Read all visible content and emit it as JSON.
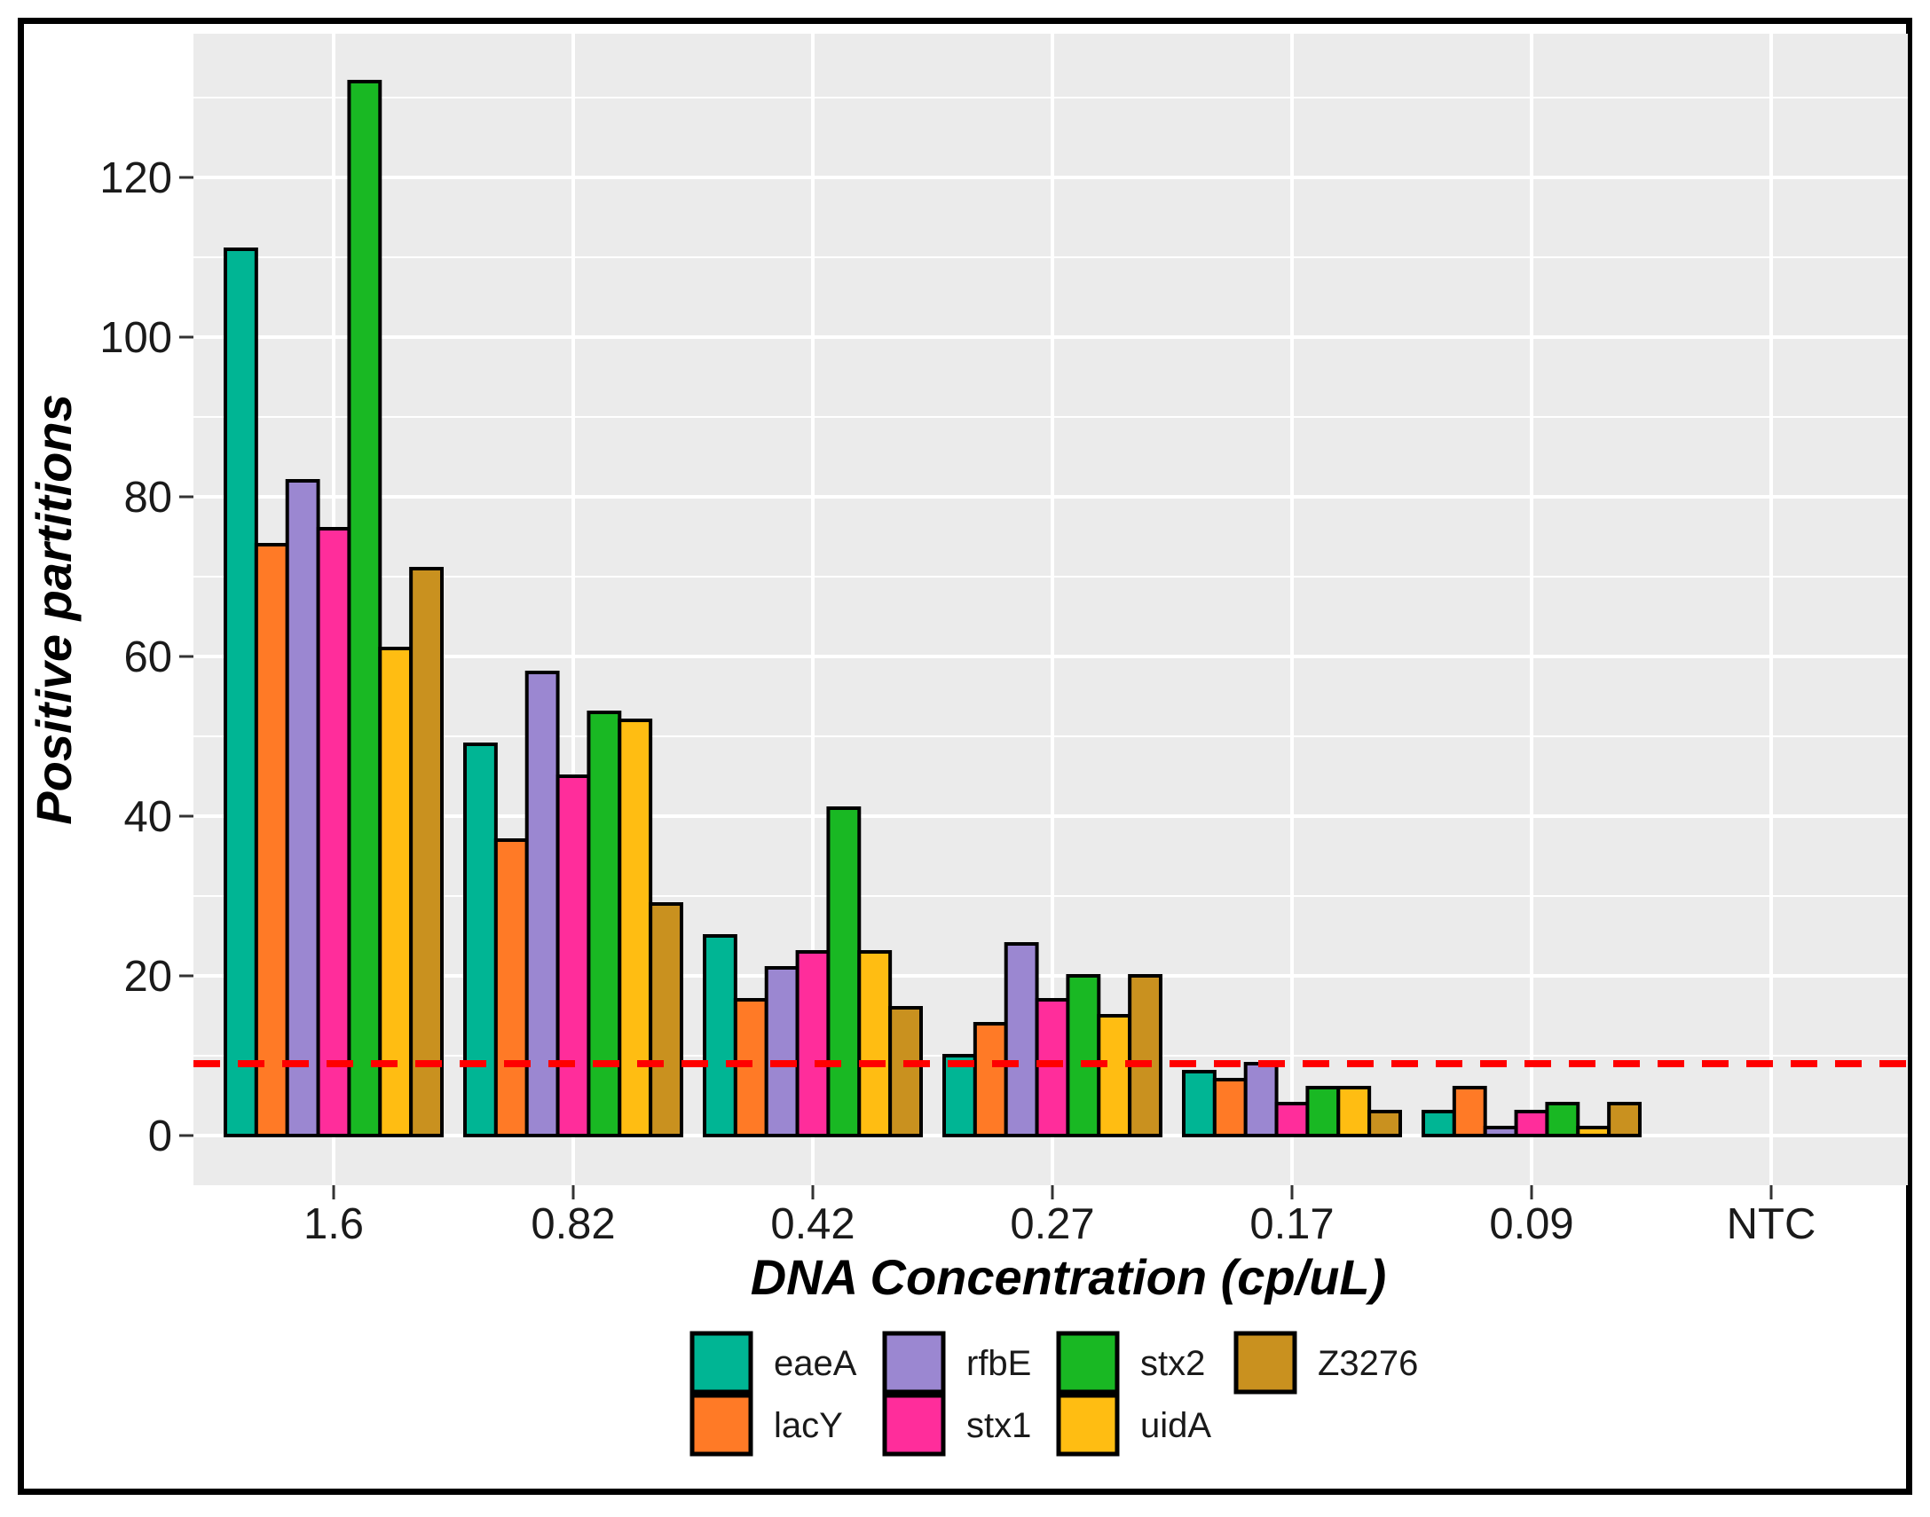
{
  "chart_data": {
    "type": "bar",
    "xlabel": "DNA Concentration (cp/uL)",
    "ylabel": "Positive partitions",
    "categories": [
      "1.6",
      "0.82",
      "0.42",
      "0.27",
      "0.17",
      "0.09",
      "NTC"
    ],
    "ylim": [
      -6,
      138
    ],
    "yticks": [
      0,
      20,
      40,
      60,
      80,
      100,
      120
    ],
    "grid": true,
    "threshold": 9,
    "threshold_color": "#ff0000",
    "background": "#ebebeb",
    "legend_position": "bottom",
    "series": [
      {
        "name": "eaeA",
        "color": "#00b594",
        "values": [
          111,
          49,
          25,
          10,
          8,
          3,
          0
        ]
      },
      {
        "name": "lacY",
        "color": "#ff7a26",
        "values": [
          74,
          37,
          17,
          14,
          7,
          6,
          0
        ]
      },
      {
        "name": "rfbE",
        "color": "#9b87d1",
        "values": [
          82,
          58,
          21,
          24,
          9,
          1,
          0
        ]
      },
      {
        "name": "stx1",
        "color": "#ff2d9b",
        "values": [
          76,
          45,
          23,
          17,
          4,
          3,
          0
        ]
      },
      {
        "name": "stx2",
        "color": "#19b823",
        "values": [
          132,
          53,
          41,
          20,
          6,
          4,
          0
        ]
      },
      {
        "name": "uidA",
        "color": "#ffbd12",
        "values": [
          61,
          52,
          23,
          15,
          6,
          1,
          0
        ]
      },
      {
        "name": "Z3276",
        "color": "#c9911f",
        "values": [
          71,
          29,
          16,
          20,
          3,
          4,
          0
        ]
      }
    ]
  }
}
